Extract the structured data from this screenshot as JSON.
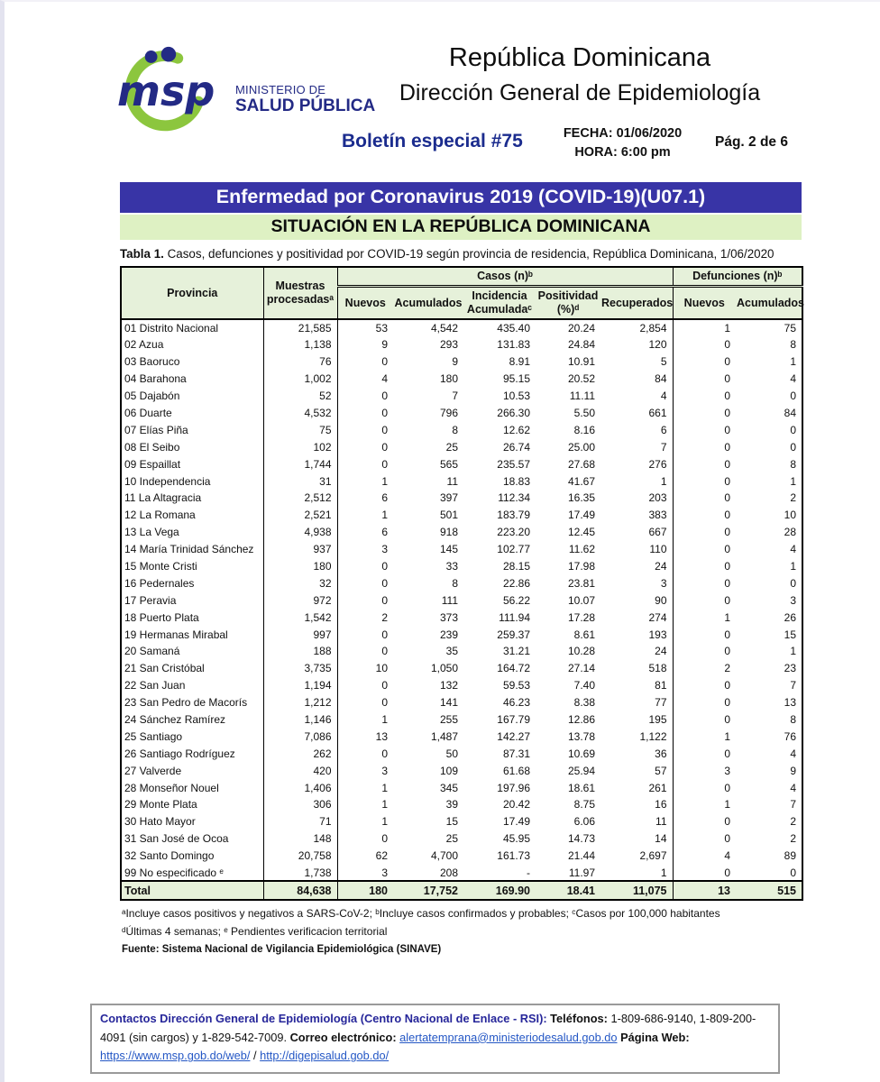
{
  "header": {
    "ministry_line1": "MINISTERIO DE",
    "ministry_line2": "SALUD PÚBLICA",
    "logo_text": "msp",
    "title": "República Dominicana",
    "subtitle": "Dirección General de Epidemiología",
    "bulletin": "Boletín especial #75",
    "date_label": "FECHA: 01/06/2020",
    "time_label": "HORA: 6:00 pm",
    "page_label": "Pág. 2 de 6",
    "brand_navy": "#232a85",
    "brand_green": "#8cc63e"
  },
  "banners": {
    "disease": "Enfermedad por Coronavirus 2019 (COVID-19)(U07.1)",
    "situation": "SITUACIÓN EN LA REPÚBLICA DOMINICANA",
    "disease_bg": "#3834a6",
    "situation_bg": "#def1c3"
  },
  "caption": {
    "label": "Tabla 1.",
    "text": "Casos, defunciones y positividad por COVID-19 según provincia de residencia, República Dominicana, 1/06/2020"
  },
  "table": {
    "header": {
      "provincia": "Provincia",
      "muestras": "Muestras procesadasᵃ",
      "casos_group": "Casos (n)ᵇ",
      "defunciones_group": "Defunciones (n)ᵇ",
      "casos_cols": [
        "Nuevos",
        "Acumulados",
        "Incidencia Acumuladaᶜ",
        "Positividad (%)ᵈ",
        "Recuperados"
      ],
      "defunciones_cols": [
        "Nuevos",
        "Acumulados"
      ]
    },
    "header_bg": "#e6f1da",
    "rows": [
      [
        "01 Distrito Nacional",
        "21,585",
        "53",
        "4,542",
        "435.40",
        "20.24",
        "2,854",
        "1",
        "75"
      ],
      [
        "02 Azua",
        "1,138",
        "9",
        "293",
        "131.83",
        "24.84",
        "120",
        "0",
        "8"
      ],
      [
        "03 Baoruco",
        "76",
        "0",
        "9",
        "8.91",
        "10.91",
        "5",
        "0",
        "1"
      ],
      [
        "04 Barahona",
        "1,002",
        "4",
        "180",
        "95.15",
        "20.52",
        "84",
        "0",
        "4"
      ],
      [
        "05 Dajabón",
        "52",
        "0",
        "7",
        "10.53",
        "11.11",
        "4",
        "0",
        "0"
      ],
      [
        "06 Duarte",
        "4,532",
        "0",
        "796",
        "266.30",
        "5.50",
        "661",
        "0",
        "84"
      ],
      [
        "07 Elías Piña",
        "75",
        "0",
        "8",
        "12.62",
        "8.16",
        "6",
        "0",
        "0"
      ],
      [
        "08 El Seibo",
        "102",
        "0",
        "25",
        "26.74",
        "25.00",
        "7",
        "0",
        "0"
      ],
      [
        "09 Espaillat",
        "1,744",
        "0",
        "565",
        "235.57",
        "27.68",
        "276",
        "0",
        "8"
      ],
      [
        "10 Independencia",
        "31",
        "1",
        "11",
        "18.83",
        "41.67",
        "1",
        "0",
        "1"
      ],
      [
        "11 La Altagracia",
        "2,512",
        "6",
        "397",
        "112.34",
        "16.35",
        "203",
        "0",
        "2"
      ],
      [
        "12 La Romana",
        "2,521",
        "1",
        "501",
        "183.79",
        "17.49",
        "383",
        "0",
        "10"
      ],
      [
        "13 La Vega",
        "4,938",
        "6",
        "918",
        "223.20",
        "12.45",
        "667",
        "0",
        "28"
      ],
      [
        "14 María Trinidad Sánchez",
        "937",
        "3",
        "145",
        "102.77",
        "11.62",
        "110",
        "0",
        "4"
      ],
      [
        "15 Monte Cristi",
        "180",
        "0",
        "33",
        "28.15",
        "17.98",
        "24",
        "0",
        "1"
      ],
      [
        "16 Pedernales",
        "32",
        "0",
        "8",
        "22.86",
        "23.81",
        "3",
        "0",
        "0"
      ],
      [
        "17 Peravia",
        "972",
        "0",
        "111",
        "56.22",
        "10.07",
        "90",
        "0",
        "3"
      ],
      [
        "18 Puerto Plata",
        "1,542",
        "2",
        "373",
        "111.94",
        "17.28",
        "274",
        "1",
        "26"
      ],
      [
        "19 Hermanas Mirabal",
        "997",
        "0",
        "239",
        "259.37",
        "8.61",
        "193",
        "0",
        "15"
      ],
      [
        "20 Samaná",
        "188",
        "0",
        "35",
        "31.21",
        "10.28",
        "24",
        "0",
        "1"
      ],
      [
        "21 San Cristóbal",
        "3,735",
        "10",
        "1,050",
        "164.72",
        "27.14",
        "518",
        "2",
        "23"
      ],
      [
        "22 San Juan",
        "1,194",
        "0",
        "132",
        "59.53",
        "7.40",
        "81",
        "0",
        "7"
      ],
      [
        "23 San Pedro de Macorís",
        "1,212",
        "0",
        "141",
        "46.23",
        "8.38",
        "77",
        "0",
        "13"
      ],
      [
        "24 Sánchez Ramírez",
        "1,146",
        "1",
        "255",
        "167.79",
        "12.86",
        "195",
        "0",
        "8"
      ],
      [
        "25 Santiago",
        "7,086",
        "13",
        "1,487",
        "142.27",
        "13.78",
        "1,122",
        "1",
        "76"
      ],
      [
        "26 Santiago Rodríguez",
        "262",
        "0",
        "50",
        "87.31",
        "10.69",
        "36",
        "0",
        "4"
      ],
      [
        "27 Valverde",
        "420",
        "3",
        "109",
        "61.68",
        "25.94",
        "57",
        "3",
        "9"
      ],
      [
        "28 Monseñor Nouel",
        "1,406",
        "1",
        "345",
        "197.96",
        "18.61",
        "261",
        "0",
        "4"
      ],
      [
        "29 Monte Plata",
        "306",
        "1",
        "39",
        "20.42",
        "8.75",
        "16",
        "1",
        "7"
      ],
      [
        "30 Hato Mayor",
        "71",
        "1",
        "15",
        "17.49",
        "6.06",
        "11",
        "0",
        "2"
      ],
      [
        "31 San José de Ocoa",
        "148",
        "0",
        "25",
        "45.95",
        "14.73",
        "14",
        "0",
        "2"
      ],
      [
        "32 Santo Domingo",
        "20,758",
        "62",
        "4,700",
        "161.73",
        "21.44",
        "2,697",
        "4",
        "89"
      ],
      [
        "99 No especificado ᵉ",
        "1,738",
        "3",
        "208",
        "-",
        "11.97",
        "1",
        "0",
        "0"
      ]
    ],
    "total": [
      "Total",
      "84,638",
      "180",
      "17,752",
      "169.90",
      "18.41",
      "11,075",
      "13",
      "515"
    ]
  },
  "footnotes": {
    "line1": "ᵃIncluye casos positivos y negativos a SARS-CoV-2; ᵇIncluye casos confirmados y probables; ᶜCasos por 100,000 habitantes",
    "line2": "ᵈÚltimas 4 semanas; ᵉ Pendientes verificacion territorial",
    "fuente": "Fuente: Sistema Nacional de Vigilancia Epidemiológica (SINAVE)"
  },
  "contact": {
    "segments": [
      {
        "style": "boldnavy",
        "text": "Contactos Dirección General de Epidemiología (Centro Nacional de Enlace - RSI):",
        "name": "contact-heading"
      },
      {
        "style": "bold",
        "text": " Teléfonos:",
        "name": "phones-label"
      },
      {
        "style": "plain",
        "text": " 1-809-686-9140, 1-809-200-4091 (sin cargos) y 1-829-542-7009.  ",
        "name": "phone-numbers"
      },
      {
        "style": "bold",
        "text": "Correo electrónico: ",
        "name": "email-label"
      },
      {
        "style": "link",
        "text": "alertatemprana@ministeriodesalud.gob.do",
        "name": "email-link"
      },
      {
        "style": "bold",
        "text": " Página Web: ",
        "name": "web-label"
      },
      {
        "style": "link",
        "text": "https://www.msp.gob.do/web/",
        "name": "msp-web-link"
      },
      {
        "style": "plain",
        "text": " / ",
        "name": "link-separator"
      },
      {
        "style": "link",
        "text": "http://digepisalud.gob.do/",
        "name": "digepi-web-link"
      }
    ]
  }
}
